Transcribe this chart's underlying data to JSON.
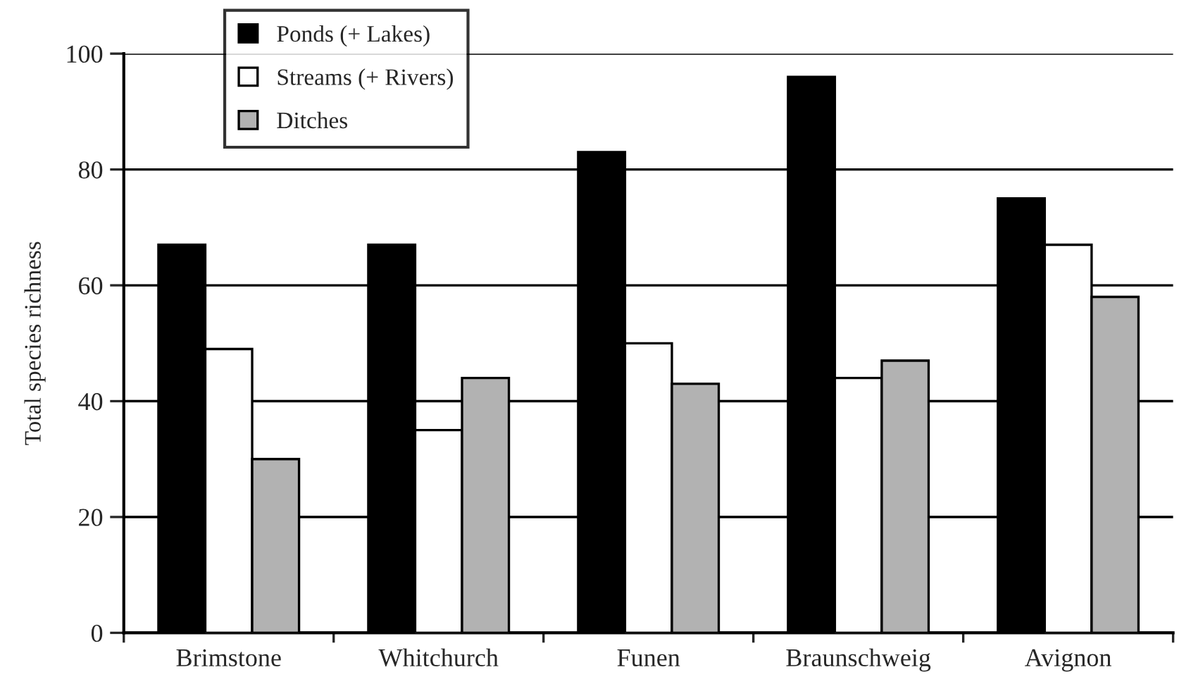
{
  "chart_data": {
    "type": "bar",
    "ylabel": "Total species richness",
    "categories": [
      "Brimstone",
      "Whitchurch",
      "Funen",
      "Braunschweig",
      "Avignon"
    ],
    "series": [
      {
        "name": "Ponds (+ Lakes)",
        "color": "#000000",
        "values": [
          67,
          67,
          83,
          96,
          75
        ]
      },
      {
        "name": "Streams (+ Rivers)",
        "color": "#ffffff",
        "values": [
          49,
          35,
          50,
          44,
          67
        ]
      },
      {
        "name": "Ditches",
        "color": "#b2b2b2",
        "values": [
          30,
          44,
          43,
          47,
          58
        ]
      }
    ],
    "ylim": [
      0,
      100
    ],
    "yticks": [
      0,
      20,
      40,
      60,
      80,
      100
    ],
    "grid": "y",
    "legend": "top left"
  }
}
